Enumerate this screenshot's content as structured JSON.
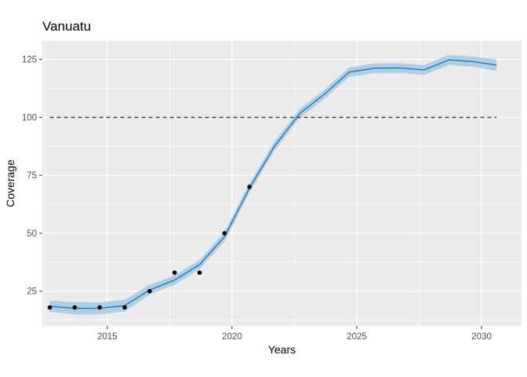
{
  "chart_data": {
    "type": "line",
    "title": "Vanuatu",
    "xlabel": "Years",
    "ylabel": "Coverage",
    "xlim": [
      2012.4,
      2031.6
    ],
    "ylim": [
      10,
      133
    ],
    "xticks": [
      2015,
      2020,
      2025,
      2030
    ],
    "yticks": [
      25,
      50,
      75,
      100,
      125
    ],
    "reference_line": {
      "y": 100,
      "x_range": [
        2012.7,
        2030.6
      ],
      "style": "dashed",
      "color": "#333333"
    },
    "series": [
      {
        "kind": "line",
        "color": "#1f77b4",
        "band_color": "#a6cae3",
        "x": [
          2012.7,
          2013.7,
          2014.7,
          2015.7,
          2016.7,
          2017.7,
          2018.7,
          2019.7,
          2020.7,
          2021.7,
          2022.7,
          2023.7,
          2024.7,
          2025.7,
          2026.7,
          2027.7,
          2028.7,
          2029.7,
          2030.6
        ],
        "y": [
          18.5,
          17.6,
          17.6,
          18.8,
          25.5,
          29.8,
          36.5,
          48.5,
          69.5,
          87.5,
          101.5,
          110,
          119.5,
          121.2,
          121.3,
          120.5,
          124.8,
          124,
          122.5
        ],
        "lower": [
          16,
          15,
          15,
          16.3,
          23.5,
          27.8,
          34.5,
          46.5,
          67.5,
          85.5,
          99.5,
          108,
          117.5,
          119,
          119.2,
          118.3,
          122.6,
          121.8,
          120
        ],
        "upper": [
          21,
          20.2,
          20.2,
          21.3,
          27.8,
          31.8,
          38.5,
          50.5,
          71.5,
          89.5,
          103.5,
          112,
          121.5,
          123.3,
          123.4,
          122.6,
          127,
          126.2,
          125
        ]
      },
      {
        "kind": "points",
        "color": "#000000",
        "x": [
          2012.7,
          2013.7,
          2014.7,
          2015.7,
          2016.7,
          2017.7,
          2018.7,
          2019.7,
          2020.7
        ],
        "y": [
          18,
          18,
          18,
          18,
          25,
          33,
          33,
          50,
          70
        ]
      }
    ],
    "grid": true,
    "background": "#ebebeb",
    "grid_color": "#ffffff"
  }
}
